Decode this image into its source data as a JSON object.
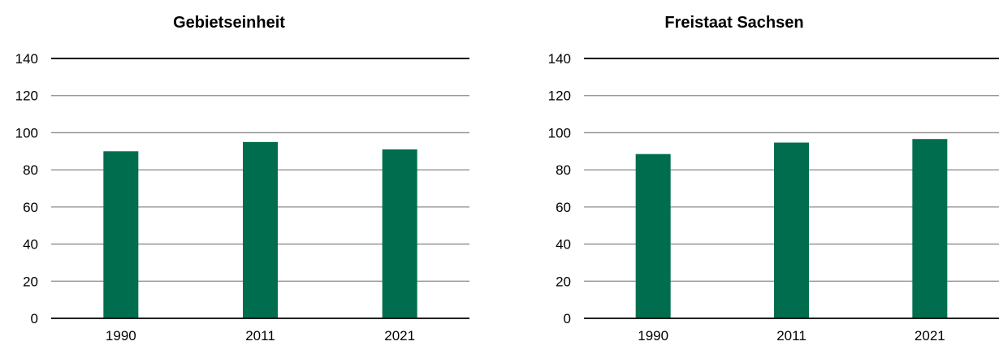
{
  "chart_data": [
    {
      "type": "bar",
      "title": "Gebietseinheit",
      "categories": [
        "1990",
        "2011",
        "2021"
      ],
      "values": [
        90,
        95,
        91
      ],
      "ylim": [
        0,
        140
      ],
      "yticks": [
        0,
        20,
        40,
        60,
        80,
        100,
        120,
        140
      ],
      "xlabel": "",
      "ylabel": "",
      "grid": true,
      "bar_color": "#006e4e",
      "grid_color": "#8c8c8c",
      "top_line_color": "#000000"
    },
    {
      "type": "bar",
      "title": "Freistaat Sachsen",
      "categories": [
        "1990",
        "2011",
        "2021"
      ],
      "values": [
        88.5,
        94.7,
        96.6
      ],
      "ylim": [
        0,
        140
      ],
      "yticks": [
        0,
        20,
        40,
        60,
        80,
        100,
        120,
        140
      ],
      "xlabel": "",
      "ylabel": "",
      "grid": true,
      "bar_color": "#006e4e",
      "grid_color": "#8c8c8c",
      "top_line_color": "#000000"
    }
  ]
}
